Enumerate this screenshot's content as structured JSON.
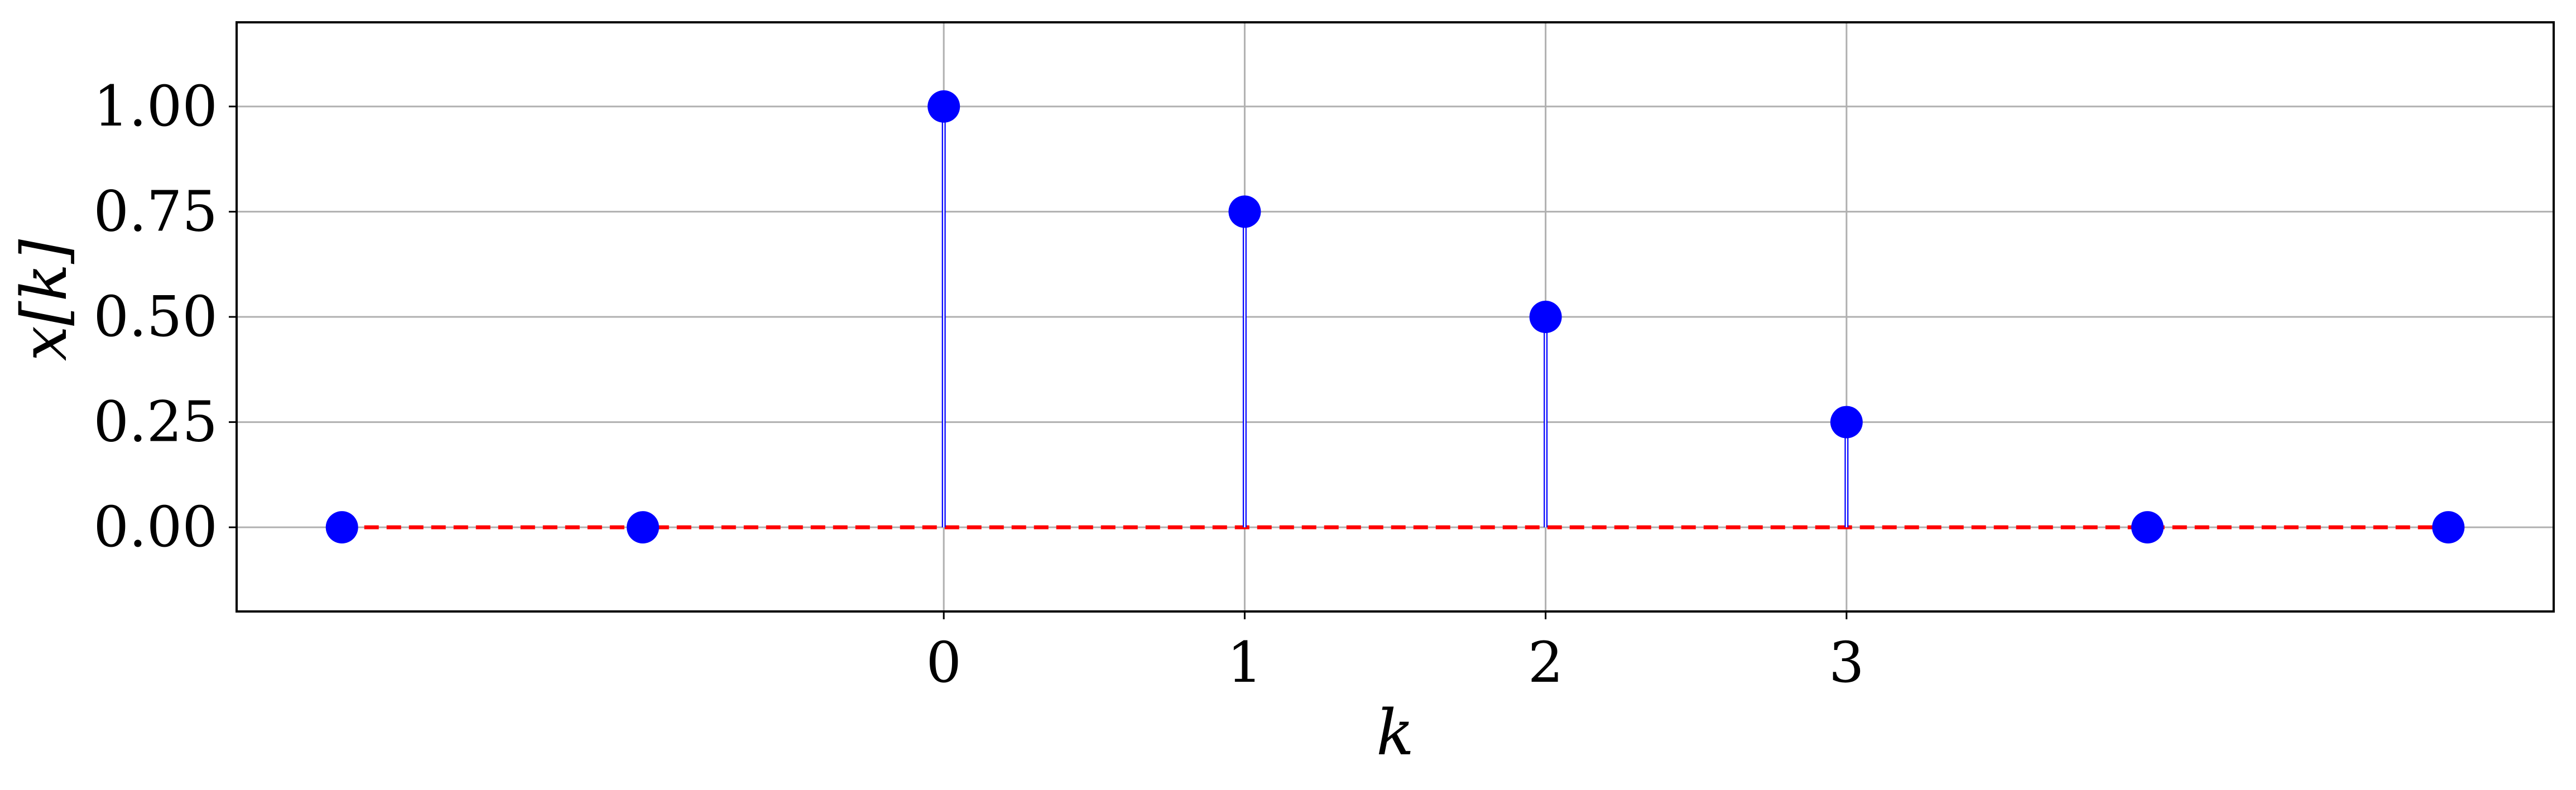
{
  "chart_data": {
    "type": "stem",
    "title": "",
    "xlabel": "k",
    "ylabel": "x[k]",
    "x": [
      -2,
      -1,
      0,
      1,
      2,
      3,
      4,
      5
    ],
    "y": [
      0,
      0,
      1.0,
      0.75,
      0.5,
      0.25,
      0,
      0
    ],
    "xticks": [
      0,
      1,
      2,
      3
    ],
    "xtick_labels": [
      "0",
      "1",
      "2",
      "3"
    ],
    "yticks": [
      0,
      0.25,
      0.5,
      0.75,
      1.0
    ],
    "ytick_labels": [
      "0.00",
      "0.25",
      "0.50",
      "0.75",
      "1.00"
    ],
    "xlim": [
      -2.35,
      5.35
    ],
    "ylim": [
      -0.2,
      1.2
    ],
    "grid": true,
    "colors": {
      "marker": "#0000ff",
      "stem": "#0000ff",
      "baseline": "#ff0000",
      "grid": "#b0b0b0"
    }
  }
}
